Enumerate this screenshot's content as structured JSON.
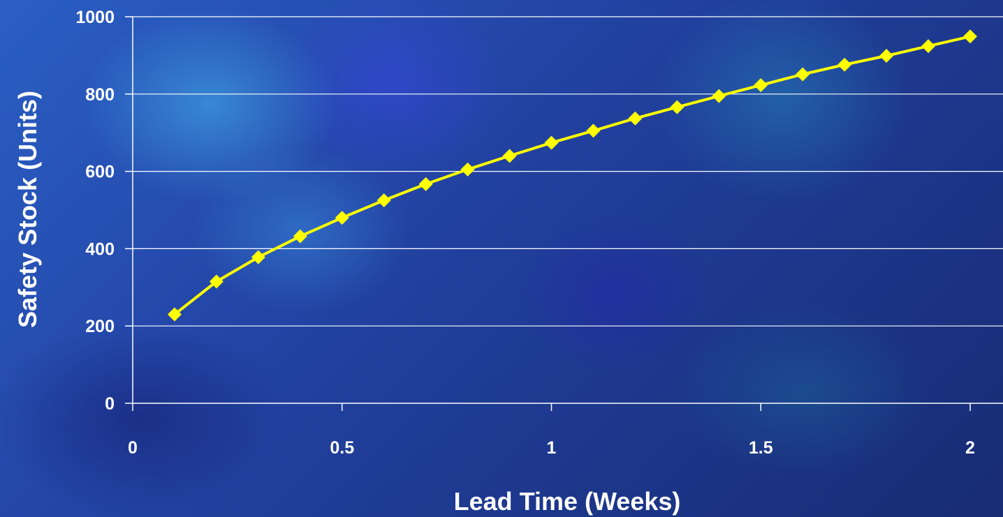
{
  "chart_data": {
    "type": "line",
    "title": "",
    "xlabel": "Lead Time (Weeks)",
    "ylabel": "Safety Stock (Units)",
    "xlim": [
      0,
      2
    ],
    "ylim": [
      0,
      1000
    ],
    "x_ticks": [
      "0",
      "0.5",
      "1",
      "1.5",
      "2"
    ],
    "y_ticks": [
      "0",
      "200",
      "400",
      "600",
      "800",
      "1000"
    ],
    "grid": "horizontal",
    "legend": "none",
    "series": [
      {
        "color": "#ffff00",
        "marker": "diamond",
        "x": [
          0.1,
          0.2,
          0.3,
          0.4,
          0.5,
          0.6,
          0.7,
          0.8,
          0.9,
          1.0,
          1.1,
          1.2,
          1.3,
          1.4,
          1.5,
          1.6,
          1.7,
          1.8,
          1.9,
          2.0
        ],
        "y": [
          230,
          315,
          378,
          432,
          480,
          525,
          567,
          605,
          640,
          674,
          705,
          737,
          766,
          795,
          823,
          851,
          876,
          899,
          924,
          949
        ]
      }
    ]
  },
  "colors": {
    "grid": "#ffffff",
    "text": "#ffffff",
    "series": "#ffff00"
  }
}
